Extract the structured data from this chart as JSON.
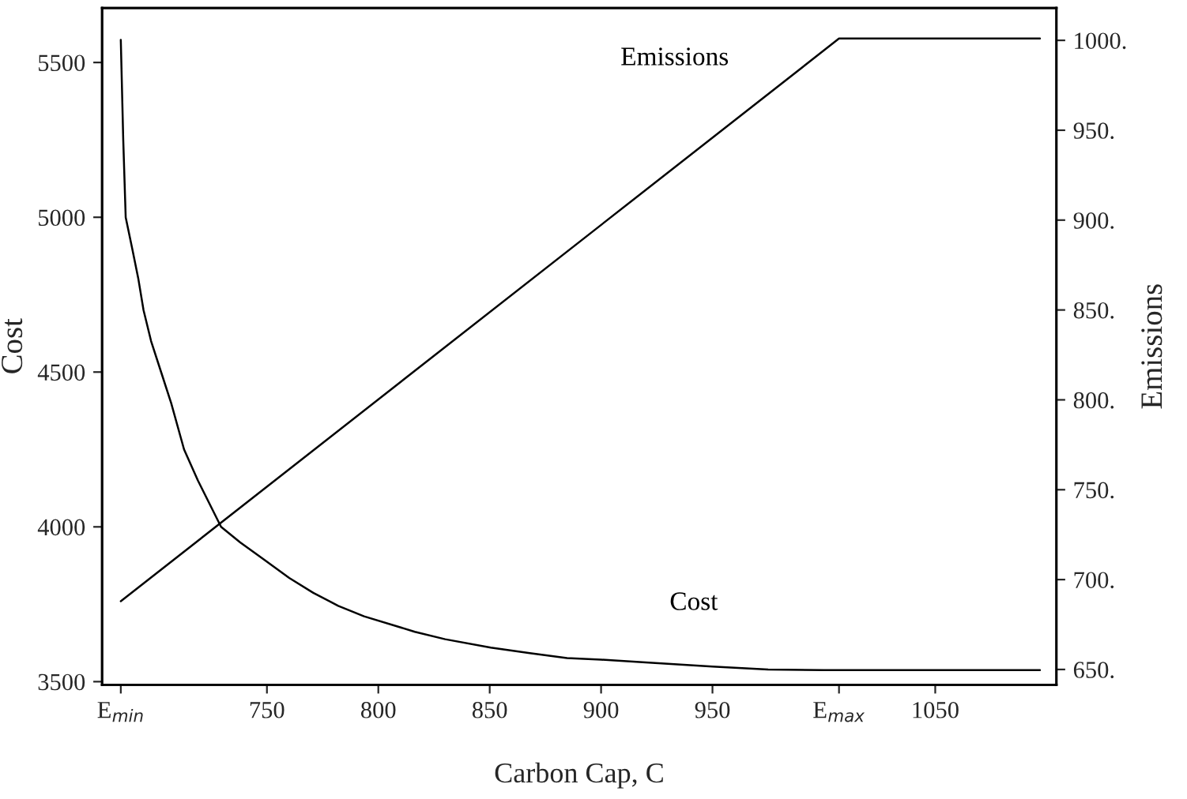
{
  "chart_data": {
    "type": "line",
    "xlabel": "Carbon Cap, C",
    "ylabel": "Cost",
    "y2label": "Emissions",
    "xlim": [
      676,
      1104.4
    ],
    "ylim": [
      3490,
      5676
    ],
    "y2lim": [
      641.5,
      1018
    ],
    "xticks": [
      {
        "value": 684.4,
        "label": "E$_{min}$"
      },
      750,
      800,
      850,
      900,
      950,
      {
        "value": 1006.8,
        "label": "E$_{max}$"
      },
      1050
    ],
    "yticks": [
      3500,
      4000,
      4500,
      5000,
      5500
    ],
    "y2ticks": [
      {
        "value": 650,
        "label": "650."
      },
      {
        "value": 700,
        "label": "700."
      },
      {
        "value": 750,
        "label": "750."
      },
      {
        "value": 800,
        "label": "800."
      },
      {
        "value": 850,
        "label": "850."
      },
      {
        "value": 900,
        "label": "900."
      },
      {
        "value": 950,
        "label": "950."
      },
      {
        "value": 1000,
        "label": "1000."
      }
    ],
    "grid": false,
    "legend": false,
    "series": [
      {
        "name": "Emissions",
        "color": "#000000",
        "axis": "y2",
        "x": [
          684.4,
          1006.8,
          1097
        ],
        "values": [
          688,
          1001,
          1001
        ]
      },
      {
        "name": "Cost",
        "color": "#000000",
        "x": [
          684.4,
          685.5,
          686.6,
          689.5,
          692.3,
          694.6,
          698,
          702.5,
          707,
          712.8,
          719,
          729.4,
          738,
          748.2,
          760,
          770.8,
          782,
          793.6,
          816.4,
          830,
          850.5,
          868,
          884.7,
          900,
          920,
          950,
          975,
          1000,
          1097
        ],
        "values": [
          5573,
          5250,
          5000,
          4900,
          4800,
          4700,
          4600,
          4500,
          4400,
          4250,
          4150,
          4000,
          3950,
          3897,
          3835,
          3787,
          3745,
          3711,
          3661,
          3637,
          3610,
          3592,
          3576,
          3571,
          3562,
          3549,
          3539,
          3537,
          3537
        ]
      }
    ]
  }
}
